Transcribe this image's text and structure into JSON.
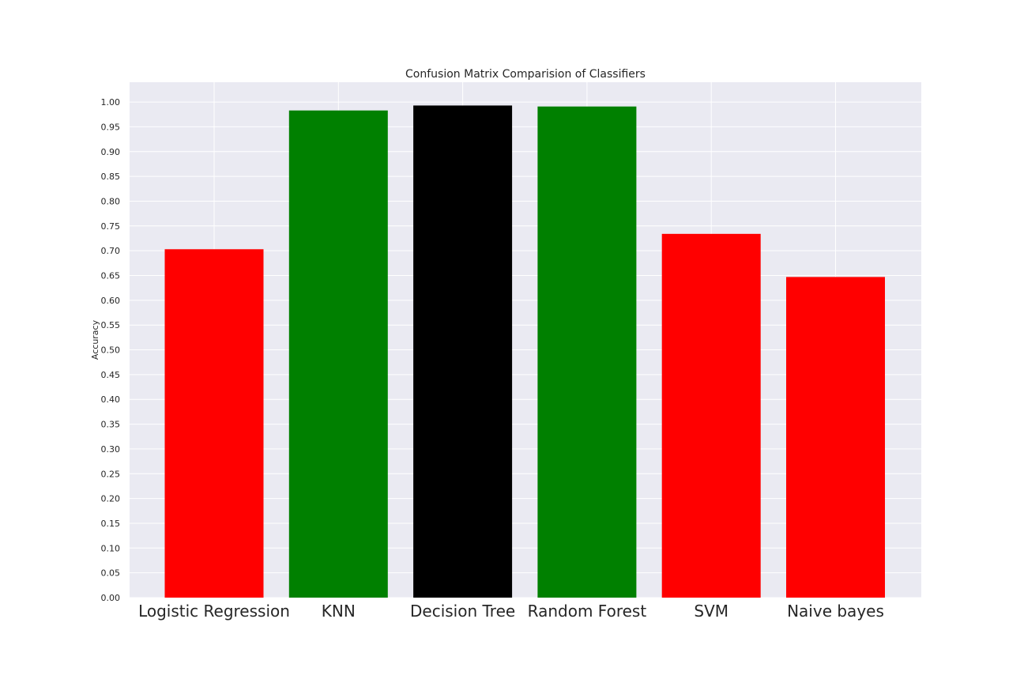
{
  "chart_data": {
    "type": "bar",
    "title": "Confusion Matrix Comparision of Classifiers",
    "xlabel": "",
    "ylabel": "Accuracy",
    "categories": [
      "Logistic Regression",
      "KNN",
      "Decision Tree",
      "Random Forest",
      "SVM",
      "Naive bayes"
    ],
    "values": [
      0.703,
      0.983,
      0.993,
      0.991,
      0.734,
      0.647
    ],
    "bar_colors": [
      "#ff0000",
      "#008000",
      "#000000",
      "#008000",
      "#ff0000",
      "#ff0000"
    ],
    "ylim": [
      0,
      1.04
    ],
    "yticks": [
      "0.00",
      "0.05",
      "0.10",
      "0.15",
      "0.20",
      "0.25",
      "0.30",
      "0.35",
      "0.40",
      "0.45",
      "0.50",
      "0.55",
      "0.60",
      "0.65",
      "0.70",
      "0.75",
      "0.80",
      "0.85",
      "0.90",
      "0.95",
      "1.00"
    ],
    "grid": true,
    "background_color": "#eaeaf2",
    "grid_color": "#ffffff"
  }
}
